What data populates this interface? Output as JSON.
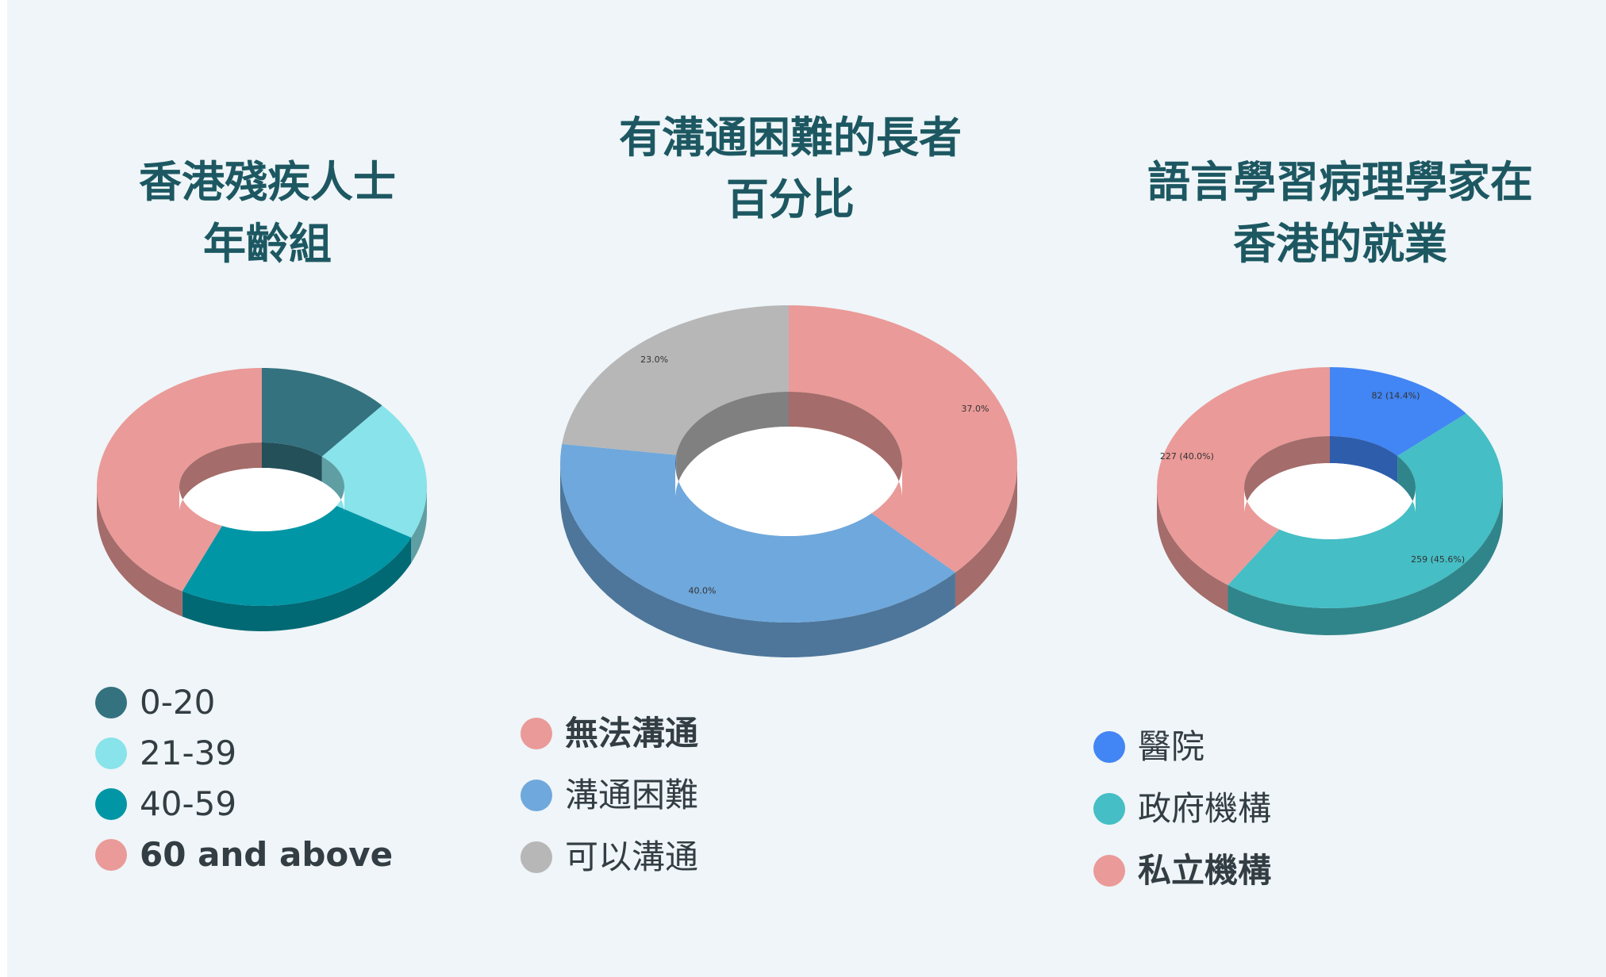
{
  "chart_data": [
    {
      "type": "pie",
      "title": "香港殘疾人士\n年齡組",
      "categories": [
        "0-20",
        "21-39",
        "40-59",
        "60 and above"
      ],
      "values": [
        13,
        19,
        26,
        42
      ],
      "colors": [
        "#34727f",
        "#88e3ea",
        "#0096a6",
        "#ea9a98"
      ],
      "data_labels": [],
      "legend_bold": [
        false,
        false,
        false,
        true
      ],
      "legend_position": "bottom"
    },
    {
      "type": "pie",
      "title": "有溝通困難的長者\n百分比",
      "categories": [
        "無法溝通",
        "溝通困難",
        "可以溝通"
      ],
      "values": [
        37.0,
        40.0,
        23.0
      ],
      "colors": [
        "#ea9a98",
        "#6fa8dc",
        "#b7b7b7"
      ],
      "data_labels": [
        "37.0%",
        "40.0%",
        "23.0%"
      ],
      "legend_bold": [
        true,
        false,
        false
      ],
      "legend_position": "bottom"
    },
    {
      "type": "pie",
      "title": "語言學習病理學家在\n香港的就業",
      "categories": [
        "醫院",
        "政府機構",
        "私立機構"
      ],
      "values": [
        82,
        259,
        227
      ],
      "percentages": [
        14.4,
        45.6,
        40.0
      ],
      "colors": [
        "#4285f4",
        "#45bec5",
        "#ea9a98"
      ],
      "data_labels": [
        "82 (14.4%)",
        "259 (45.6%)",
        "227 (40.0%)"
      ],
      "legend_bold": [
        false,
        false,
        true
      ],
      "legend_position": "bottom"
    }
  ]
}
